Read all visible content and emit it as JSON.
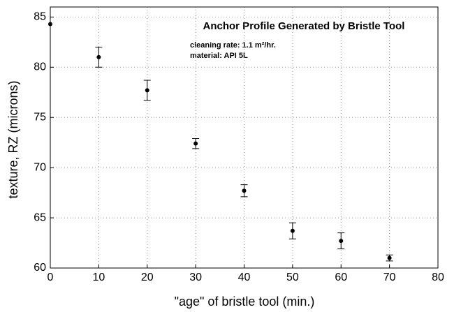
{
  "chart_data": {
    "type": "scatter",
    "title": "Anchor Profile Generated by Bristle Tool",
    "annotations": [
      "cleaning rate: 1.1 m²/hr.",
      "material: API 5L"
    ],
    "xlabel": "\"age\" of bristle tool (min.)",
    "ylabel": "texture, RZ (microns)",
    "x": [
      0,
      10,
      20,
      30,
      40,
      50,
      60,
      70
    ],
    "values": [
      84.3,
      81,
      77.7,
      72.4,
      67.7,
      63.7,
      62.7,
      61
    ],
    "errors": [
      0,
      1,
      1,
      0.5,
      0.6,
      0.8,
      0.8,
      0.3
    ],
    "color": "#000000",
    "xlim": [
      0,
      80
    ],
    "xticks": [
      0,
      10,
      20,
      30,
      40,
      50,
      60,
      70,
      80
    ],
    "ylim": [
      60,
      86
    ],
    "yticks": [
      60,
      65,
      70,
      75,
      80,
      85
    ],
    "grid": true
  }
}
